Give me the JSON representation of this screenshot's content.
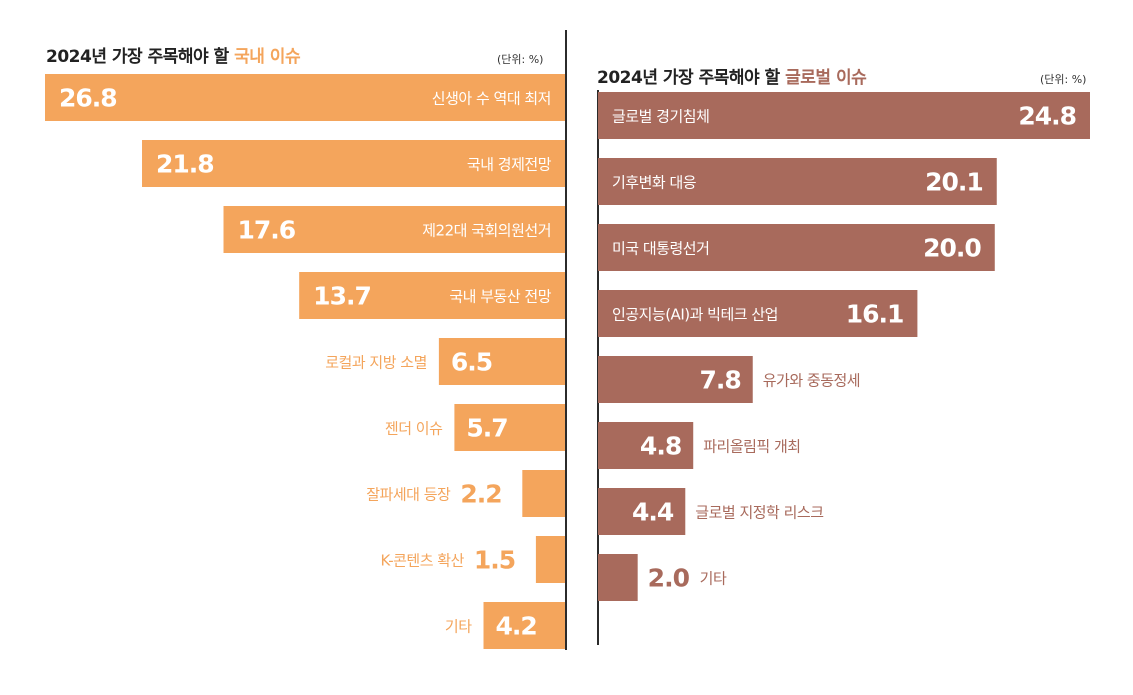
{
  "colors": {
    "domestic": "#f4a55c",
    "global": "#a86a5c",
    "text_dark": "#222222",
    "white": "#ffffff"
  },
  "chart_data": [
    {
      "type": "bar",
      "orientation": "horizontal",
      "title_prefix": "2024년 가장 주목해야 할 ",
      "title_highlight": "국내 이슈",
      "unit": "(단위: %)",
      "categories": [
        "신생아 수 역대 최저",
        "국내 경제전망",
        "제22대 국회의원선거",
        "국내 부동산 전망",
        "로컬과 지방 소멸",
        "젠더 이슈",
        "잘파세대 등장",
        "K-콘텐츠 확산",
        "기타"
      ],
      "values": [
        26.8,
        21.8,
        17.6,
        13.7,
        6.5,
        5.7,
        2.2,
        1.5,
        4.2
      ],
      "value_labels": [
        "26.8",
        "21.8",
        "17.6",
        "13.7",
        "6.5",
        "5.7",
        "2.2",
        "1.5",
        "4.2"
      ],
      "direction": "right-to-left"
    },
    {
      "type": "bar",
      "orientation": "horizontal",
      "title_prefix": "2024년 가장 주목해야 할 ",
      "title_highlight": "글로벌 이슈",
      "unit": "(단위: %)",
      "categories": [
        "글로벌 경기침체",
        "기후변화 대응",
        "미국 대통령선거",
        "인공지능(AI)과 빅테크 산업",
        "유가와 중동정세",
        "파리올림픽 개최",
        "글로벌 지정학 리스크",
        "기타"
      ],
      "values": [
        24.8,
        20.1,
        20.0,
        16.1,
        7.8,
        4.8,
        4.4,
        2.0
      ],
      "value_labels": [
        "24.8",
        "20.1",
        "20.0",
        "16.1",
        "7.8",
        "4.8",
        "4.4",
        "2.0"
      ],
      "direction": "left-to-right"
    }
  ]
}
